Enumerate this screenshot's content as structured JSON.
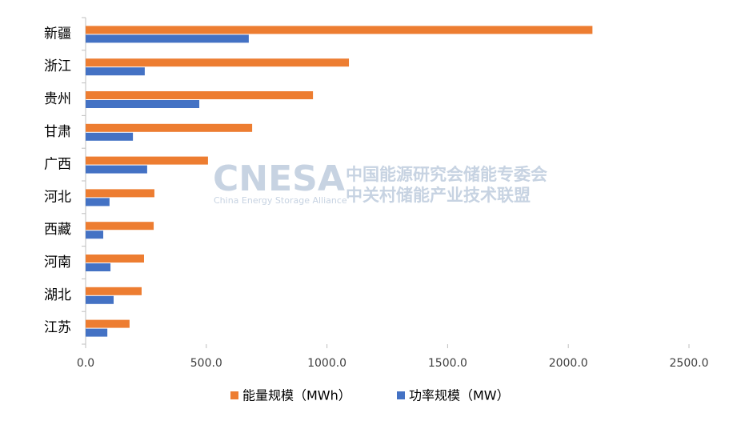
{
  "chart_data": {
    "type": "hbar",
    "categories": [
      "新疆",
      "浙江",
      "贵州",
      "甘肃",
      "广西",
      "河北",
      "西藏",
      "河南",
      "湖北",
      "江苏"
    ],
    "series": [
      {
        "name": "能量规模（MWh）",
        "color": "#ed7d31",
        "values": [
          2100,
          1091,
          942,
          690,
          507,
          285,
          282,
          242,
          232,
          182
        ]
      },
      {
        "name": "功率规模（MW）",
        "color": "#4472c4",
        "values": [
          676,
          245,
          471,
          196,
          255,
          99,
          73,
          103,
          116,
          90
        ]
      }
    ],
    "xlim": [
      0,
      2500
    ],
    "xticks": [
      {
        "value": 0,
        "label": "0.0"
      },
      {
        "value": 500,
        "label": "500.0"
      },
      {
        "value": 1000,
        "label": "1000.0"
      },
      {
        "value": 1500,
        "label": "1500.0"
      },
      {
        "value": 2000,
        "label": "2000.0"
      },
      {
        "value": 2500,
        "label": "2500.0"
      }
    ],
    "legend": "bottom",
    "watermark": {
      "logo": "CNESA",
      "logo_subtitle": "China Energy Storage Alliance",
      "line1": "中国能源研究会储能专委会",
      "line2": "中关村储能产业技术联盟"
    }
  }
}
